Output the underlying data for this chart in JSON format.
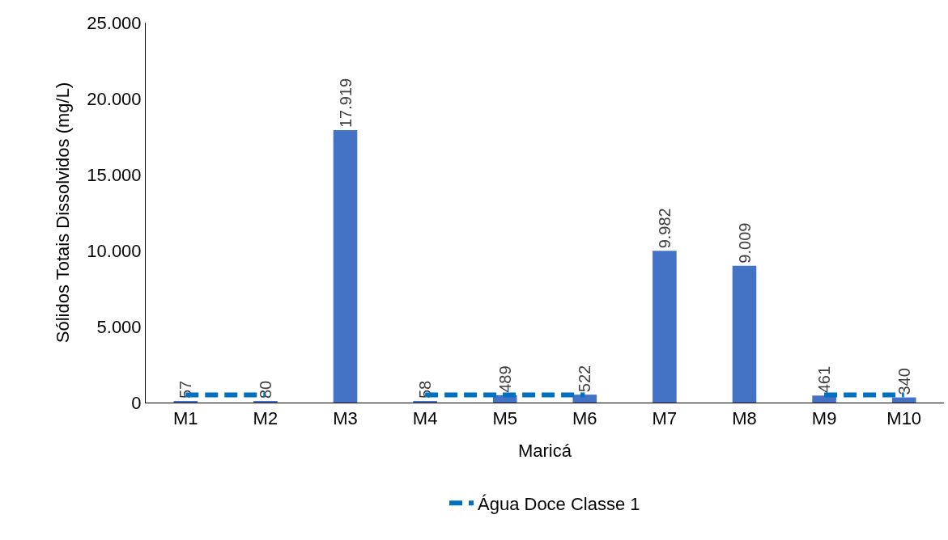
{
  "chart_data": {
    "type": "bar",
    "xlabel": "Maricá",
    "ylabel": "Sólidos Totais Dissolvidos (mg/L)",
    "categories": [
      "M1",
      "M2",
      "M3",
      "M4",
      "M5",
      "M6",
      "M7",
      "M8",
      "M9",
      "M10"
    ],
    "series": [
      {
        "color": "#4472c4",
        "values": [
          57,
          80,
          17919,
          58,
          489,
          522,
          9982,
          9009,
          461,
          340
        ],
        "value_labels": [
          "57",
          "80",
          "17.919",
          "58",
          "489",
          "522",
          "9.982",
          "9.009",
          "461",
          "340"
        ]
      },
      {
        "type": "line",
        "name": "Água Doce Classe 1",
        "color": "#0070c0",
        "line_style": "dashed",
        "marker": "none",
        "values": [
          500,
          500,
          null,
          500,
          500,
          500,
          null,
          null,
          500,
          500
        ]
      }
    ],
    "ylim": [
      0,
      25000
    ],
    "yticks": [
      {
        "value": 0,
        "label": "0"
      },
      {
        "value": 5000,
        "label": "5.000"
      },
      {
        "value": 10000,
        "label": "10.000"
      },
      {
        "value": 15000,
        "label": "15.000"
      },
      {
        "value": 20000,
        "label": "20.000"
      },
      {
        "value": 25000,
        "label": "25.000"
      }
    ],
    "grid": false,
    "legend": "bottom"
  }
}
